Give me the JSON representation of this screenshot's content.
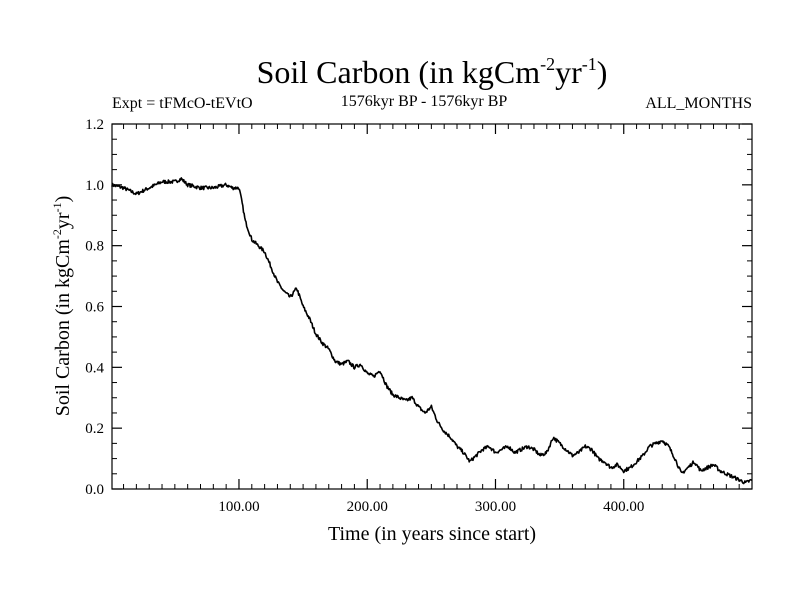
{
  "chart_data": {
    "type": "line",
    "title_main": "Soil Carbon (in kgCm",
    "title_sup1": "-2",
    "title_mid": "yr",
    "title_sup2": "-1",
    "title_end": ")",
    "subtitle_left": "Expt = tFMcO-tEVtO",
    "subtitle_center": "1576kyr BP - 1576kyr BP",
    "subtitle_right": "ALL_MONTHS",
    "xlabel": "Time (in years since start)",
    "ylabel_main": "Soil Carbon (in kgCm",
    "ylabel_sup1": "-2",
    "ylabel_mid": "yr",
    "ylabel_sup2": "-1",
    "ylabel_end": ")",
    "xlim": [
      1,
      500
    ],
    "ylim": [
      0,
      1.2
    ],
    "x_ticks": [
      100,
      200,
      300,
      400
    ],
    "x_tick_labels": [
      "100.00",
      "200.00",
      "300.00",
      "400.00"
    ],
    "y_ticks": [
      0,
      0.2,
      0.4,
      0.6,
      0.8,
      1.0,
      1.2
    ],
    "y_tick_labels": [
      "0.0",
      "0.2",
      "0.4",
      "0.6",
      "0.8",
      "1.0",
      "1.2"
    ],
    "series": [
      {
        "name": "Soil Carbon",
        "color": "#000000",
        "x": [
          1,
          10,
          20,
          30,
          40,
          50,
          55,
          60,
          70,
          80,
          90,
          95,
          100,
          102,
          105,
          110,
          115,
          120,
          125,
          130,
          135,
          140,
          145,
          150,
          155,
          160,
          165,
          170,
          175,
          180,
          185,
          190,
          195,
          200,
          205,
          210,
          215,
          220,
          225,
          230,
          235,
          240,
          245,
          250,
          255,
          260,
          265,
          270,
          275,
          280,
          285,
          290,
          295,
          300,
          305,
          310,
          315,
          320,
          325,
          330,
          335,
          340,
          345,
          350,
          355,
          360,
          365,
          370,
          375,
          380,
          385,
          390,
          395,
          400,
          405,
          410,
          415,
          420,
          425,
          430,
          435,
          440,
          445,
          450,
          455,
          460,
          465,
          470,
          475,
          480,
          485,
          490,
          495,
          500
        ],
        "values": [
          1.0,
          0.99,
          0.97,
          0.99,
          1.01,
          1.01,
          1.02,
          1.0,
          0.99,
          0.99,
          1.0,
          0.99,
          0.99,
          0.95,
          0.88,
          0.82,
          0.8,
          0.78,
          0.73,
          0.68,
          0.65,
          0.63,
          0.66,
          0.6,
          0.56,
          0.51,
          0.48,
          0.46,
          0.42,
          0.41,
          0.42,
          0.4,
          0.41,
          0.38,
          0.37,
          0.39,
          0.34,
          0.31,
          0.3,
          0.29,
          0.3,
          0.27,
          0.25,
          0.27,
          0.22,
          0.19,
          0.17,
          0.14,
          0.12,
          0.09,
          0.11,
          0.13,
          0.14,
          0.12,
          0.13,
          0.14,
          0.12,
          0.13,
          0.14,
          0.13,
          0.11,
          0.12,
          0.17,
          0.15,
          0.13,
          0.11,
          0.12,
          0.14,
          0.13,
          0.1,
          0.09,
          0.07,
          0.08,
          0.06,
          0.07,
          0.09,
          0.11,
          0.14,
          0.15,
          0.16,
          0.14,
          0.1,
          0.05,
          0.07,
          0.09,
          0.06,
          0.07,
          0.08,
          0.06,
          0.05,
          0.04,
          0.03,
          0.02,
          0.03
        ]
      }
    ]
  }
}
